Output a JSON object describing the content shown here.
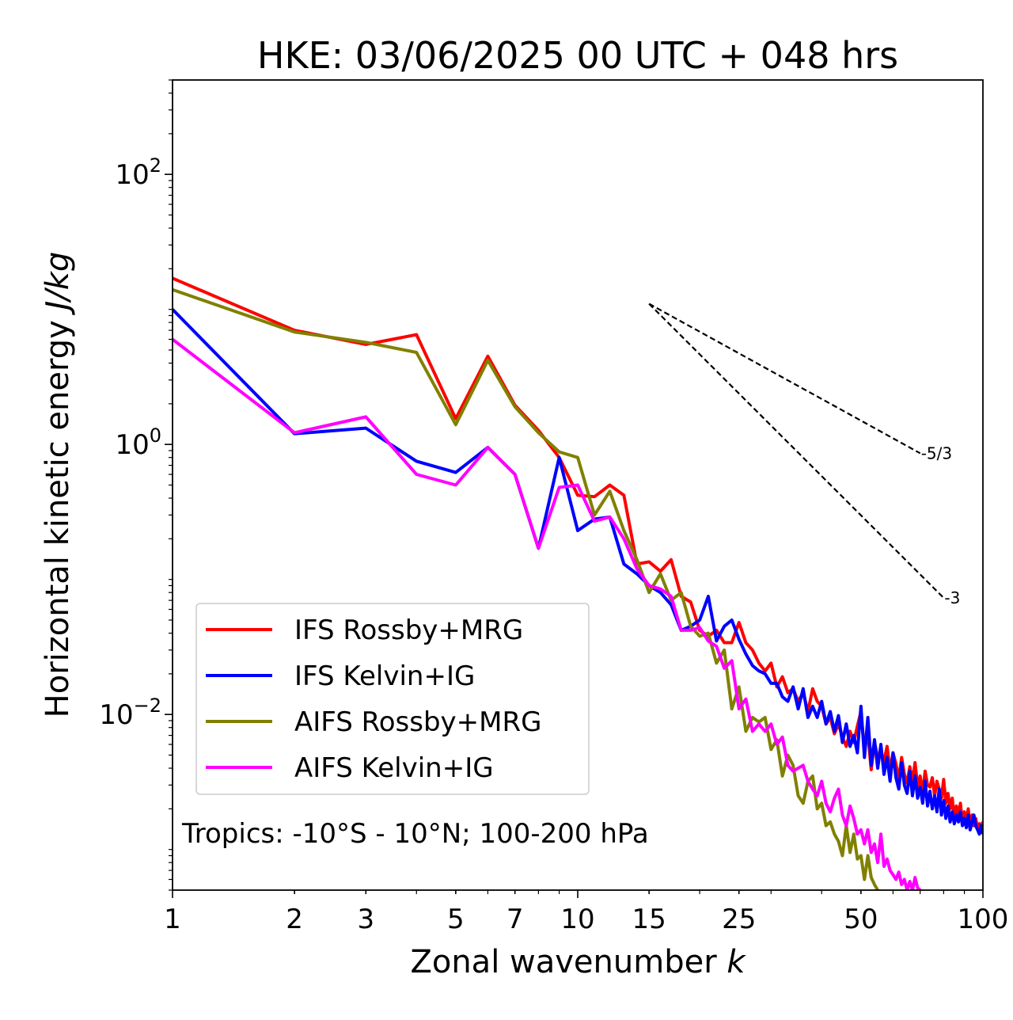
{
  "chart_data": {
    "type": "line",
    "title": "HKE: 03/06/2025 00 UTC + 048 hrs",
    "xlabel": "Zonal wavenumber",
    "xlabel_var": "k",
    "ylabel": "Horizontal kinetic energy",
    "ylabel_unit": "J/kg",
    "xscale": "log",
    "yscale": "log",
    "xlim": [
      1,
      100
    ],
    "ylim": [
      0.0005,
      500
    ],
    "xticks": [
      1,
      2,
      3,
      5,
      7,
      10,
      15,
      25,
      50,
      100
    ],
    "xtick_labels": [
      "1",
      "2",
      "3",
      "5",
      "7",
      "10",
      "15",
      "25",
      "50",
      "100"
    ],
    "yticks": [
      0.01,
      1,
      100
    ],
    "ytick_labels": [
      {
        "base": "10",
        "exp": "−2"
      },
      {
        "base": "10",
        "exp": "0"
      },
      {
        "base": "10",
        "exp": "2"
      }
    ],
    "legend_position": "lower-left",
    "annotation": "Tropics: -10°S - 10°N; 100-200 hPa",
    "reference_lines": [
      {
        "label": "-5/3",
        "slope": -1.6667,
        "x": [
          15,
          70
        ],
        "y": [
          11.0,
          0.86
        ]
      },
      {
        "label": "-3",
        "slope": -3,
        "x": [
          15,
          80
        ],
        "y": [
          11.0,
          0.073
        ]
      }
    ],
    "series": [
      {
        "name": "IFS Rossby+MRG",
        "color": "#ff0000",
        "x": [
          1,
          2,
          3,
          4,
          5,
          6,
          7,
          8,
          9,
          10,
          11,
          12,
          13,
          14,
          15,
          16,
          17,
          18,
          19,
          20,
          21,
          22,
          23,
          24,
          25,
          26,
          27,
          28,
          29,
          30,
          31,
          32,
          33,
          34,
          35,
          36,
          37,
          38,
          39,
          40,
          41,
          42,
          43,
          44,
          45,
          46,
          47,
          48,
          49,
          50,
          51,
          52,
          53,
          54,
          55,
          56,
          57,
          58,
          59,
          60,
          61,
          62,
          63,
          64,
          65,
          66,
          67,
          68,
          69,
          70,
          71,
          72,
          73,
          74,
          75,
          76,
          77,
          78,
          79,
          80,
          81,
          82,
          83,
          84,
          85,
          86,
          87,
          88,
          89,
          90,
          91,
          92,
          93,
          94,
          95,
          96,
          97,
          98,
          99,
          100
        ],
        "y": [
          17,
          7.0,
          5.5,
          6.5,
          1.55,
          4.5,
          1.95,
          1.27,
          0.8,
          0.42,
          0.41,
          0.5,
          0.42,
          0.13,
          0.135,
          0.115,
          0.14,
          0.075,
          0.068,
          0.042,
          0.038,
          0.042,
          0.034,
          0.034,
          0.048,
          0.034,
          0.03,
          0.024,
          0.021,
          0.024,
          0.016,
          0.019,
          0.0145,
          0.0155,
          0.0125,
          0.0145,
          0.0105,
          0.0155,
          0.0125,
          0.0115,
          0.0085,
          0.0095,
          0.0072,
          0.0085,
          0.0068,
          0.0058,
          0.0075,
          0.0062,
          0.0082,
          0.0105,
          0.0055,
          0.0072,
          0.0039,
          0.0062,
          0.0048,
          0.0052,
          0.0045,
          0.0058,
          0.0038,
          0.0052,
          0.0043,
          0.0033,
          0.0048,
          0.0036,
          0.0031,
          0.0041,
          0.0032,
          0.0044,
          0.0029,
          0.0035,
          0.0026,
          0.0038,
          0.003,
          0.0029,
          0.0034,
          0.0025,
          0.0032,
          0.0028,
          0.0024,
          0.0033,
          0.0022,
          0.0026,
          0.002,
          0.0024,
          0.0017,
          0.0021,
          0.0018,
          0.0022,
          0.00155,
          0.0019,
          0.0016,
          0.002,
          0.0014,
          0.0018,
          0.0015,
          0.0017,
          0.0014,
          0.00155,
          0.0015,
          0.0016
        ]
      },
      {
        "name": "IFS Kelvin+IG",
        "color": "#0000ff",
        "x": [
          1,
          2,
          3,
          4,
          5,
          6,
          7,
          8,
          9,
          10,
          11,
          12,
          13,
          14,
          15,
          16,
          17,
          18,
          19,
          20,
          21,
          22,
          23,
          24,
          25,
          26,
          27,
          28,
          29,
          30,
          31,
          32,
          33,
          34,
          35,
          36,
          37,
          38,
          39,
          40,
          41,
          42,
          43,
          44,
          45,
          46,
          47,
          48,
          49,
          50,
          51,
          52,
          53,
          54,
          55,
          56,
          57,
          58,
          59,
          60,
          61,
          62,
          63,
          64,
          65,
          66,
          67,
          68,
          69,
          70,
          71,
          72,
          73,
          74,
          75,
          76,
          77,
          78,
          79,
          80,
          81,
          82,
          83,
          84,
          85,
          86,
          87,
          88,
          89,
          90,
          91,
          92,
          93,
          94,
          95,
          96,
          97,
          98,
          99,
          100
        ],
        "y": [
          10,
          1.2,
          1.32,
          0.75,
          0.62,
          0.95,
          0.6,
          0.17,
          0.8,
          0.23,
          0.28,
          0.29,
          0.13,
          0.11,
          0.09,
          0.08,
          0.065,
          0.042,
          0.045,
          0.05,
          0.075,
          0.035,
          0.045,
          0.05,
          0.036,
          0.028,
          0.023,
          0.021,
          0.02,
          0.017,
          0.017,
          0.0135,
          0.0125,
          0.016,
          0.011,
          0.0155,
          0.0095,
          0.0115,
          0.0095,
          0.0125,
          0.0085,
          0.0105,
          0.0075,
          0.0098,
          0.0062,
          0.0085,
          0.0058,
          0.007,
          0.0052,
          0.0115,
          0.0048,
          0.0095,
          0.0042,
          0.0065,
          0.004,
          0.006,
          0.0036,
          0.0048,
          0.0032,
          0.0052,
          0.0034,
          0.0028,
          0.0044,
          0.003,
          0.0026,
          0.0038,
          0.0025,
          0.0035,
          0.0024,
          0.0029,
          0.0022,
          0.0032,
          0.0021,
          0.0027,
          0.002,
          0.0025,
          0.0019,
          0.0028,
          0.0018,
          0.0023,
          0.0017,
          0.0021,
          0.0016,
          0.0019,
          0.00155,
          0.0018,
          0.0016,
          0.0019,
          0.0015,
          0.0017,
          0.00145,
          0.0018,
          0.0014,
          0.0016,
          0.0018,
          0.0015,
          0.0014,
          0.0013,
          0.0015,
          0.0013
        ]
      },
      {
        "name": "AIFS Rossby+MRG",
        "color": "#808000",
        "x": [
          1,
          2,
          3,
          4,
          5,
          6,
          7,
          8,
          9,
          10,
          11,
          12,
          13,
          14,
          15,
          16,
          17,
          18,
          19,
          20,
          21,
          22,
          23,
          24,
          25,
          26,
          27,
          28,
          29,
          30,
          31,
          32,
          33,
          34,
          35,
          36,
          37,
          38,
          39,
          40,
          41,
          42,
          43,
          44,
          45,
          46,
          47,
          48,
          49,
          50,
          51,
          52,
          53,
          54,
          55
        ],
        "y": [
          14,
          6.8,
          5.7,
          4.8,
          1.4,
          4.2,
          1.9,
          1.22,
          0.88,
          0.8,
          0.3,
          0.45,
          0.23,
          0.14,
          0.08,
          0.11,
          0.07,
          0.08,
          0.045,
          0.038,
          0.04,
          0.024,
          0.03,
          0.011,
          0.016,
          0.0075,
          0.0095,
          0.0088,
          0.0095,
          0.0055,
          0.0065,
          0.0035,
          0.005,
          0.0042,
          0.0025,
          0.0022,
          0.0032,
          0.0035,
          0.002,
          0.0022,
          0.0015,
          0.0016,
          0.0013,
          0.00115,
          0.0009,
          0.0015,
          0.00095,
          0.0013,
          0.00085,
          0.0009,
          0.0006,
          0.0009,
          0.00062,
          0.00055,
          0.0005
        ]
      },
      {
        "name": "AIFS Kelvin+IG",
        "color": "#ff00ff",
        "x": [
          1,
          2,
          3,
          4,
          5,
          6,
          7,
          8,
          9,
          10,
          11,
          12,
          13,
          14,
          15,
          16,
          17,
          18,
          19,
          20,
          21,
          22,
          23,
          24,
          25,
          26,
          27,
          28,
          29,
          30,
          31,
          32,
          33,
          34,
          35,
          36,
          37,
          38,
          39,
          40,
          41,
          42,
          43,
          44,
          45,
          46,
          47,
          48,
          49,
          50,
          51,
          52,
          53,
          54,
          55,
          56,
          57,
          58,
          59,
          60,
          61,
          62,
          63,
          64,
          65,
          66,
          67,
          68,
          69,
          70
        ],
        "y": [
          6,
          1.22,
          1.6,
          0.6,
          0.5,
          0.95,
          0.6,
          0.17,
          0.48,
          0.5,
          0.27,
          0.29,
          0.2,
          0.12,
          0.09,
          0.085,
          0.075,
          0.042,
          0.042,
          0.044,
          0.035,
          0.032,
          0.022,
          0.025,
          0.011,
          0.013,
          0.0075,
          0.0085,
          0.0075,
          0.0085,
          0.006,
          0.0068,
          0.0042,
          0.0038,
          0.004,
          0.0042,
          0.0032,
          0.0028,
          0.0025,
          0.0032,
          0.0022,
          0.0019,
          0.0024,
          0.0028,
          0.0018,
          0.0015,
          0.0021,
          0.0017,
          0.0013,
          0.0014,
          0.0011,
          0.0014,
          0.00095,
          0.0011,
          0.0008,
          0.0013,
          0.00075,
          0.00085,
          0.0007,
          0.00065,
          0.0006,
          0.00068,
          0.00055,
          0.0006,
          0.0005,
          0.00058,
          0.0005,
          0.00062,
          0.00052,
          0.0005
        ]
      }
    ]
  }
}
